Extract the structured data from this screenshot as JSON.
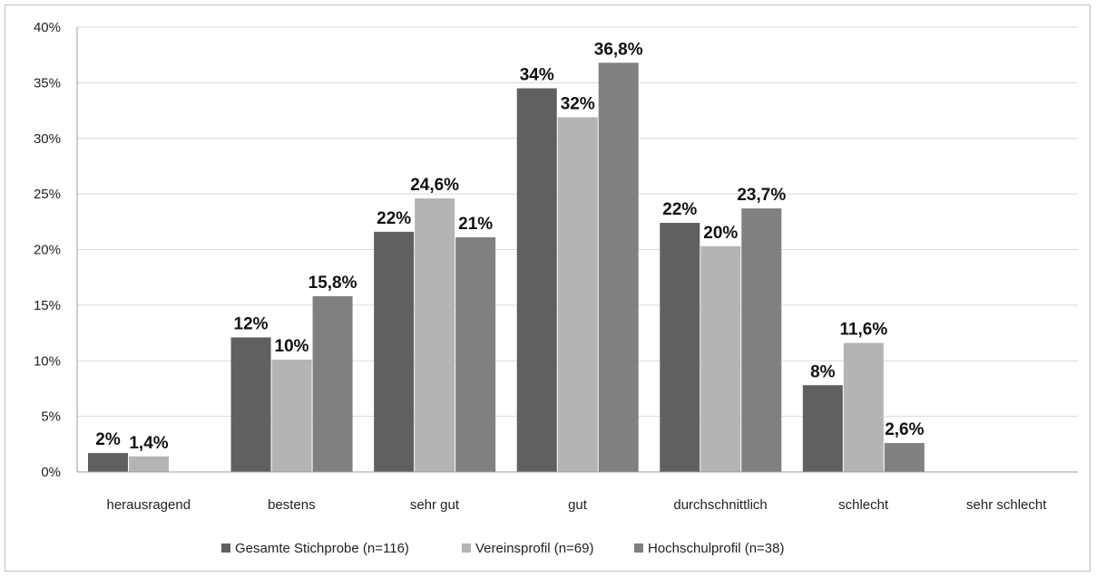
{
  "chart_data": {
    "type": "bar",
    "categories": [
      "herausragend",
      "bestens",
      "sehr gut",
      "gut",
      "durchschnittlich",
      "schlecht",
      "sehr schlecht"
    ],
    "series": [
      {
        "name": "Gesamte Stichprobe (n=116)",
        "color": "#606060",
        "values": [
          1.7,
          12.1,
          21.6,
          34.5,
          22.4,
          7.8,
          0
        ],
        "labels": [
          "2%",
          "12%",
          "22%",
          "34%",
          "22%",
          "8%",
          ""
        ]
      },
      {
        "name": "Vereinsprofil (n=69)",
        "color": "#b4b4b4",
        "values": [
          1.4,
          10.1,
          24.6,
          31.9,
          20.3,
          11.6,
          0
        ],
        "labels": [
          "1,4%",
          "10%",
          "24,6%",
          "32%",
          "20%",
          "11,6%",
          ""
        ]
      },
      {
        "name": "Hochschulprofil (n=38)",
        "color": "#808080",
        "values": [
          0,
          15.8,
          21.1,
          36.8,
          23.7,
          2.6,
          0
        ],
        "labels": [
          "",
          "15,8%",
          "21%",
          "36,8%",
          "23,7%",
          "2,6%",
          ""
        ]
      }
    ],
    "yticks": [
      "0%",
      "5%",
      "10%",
      "15%",
      "20%",
      "25%",
      "30%",
      "35%",
      "40%"
    ],
    "ylim": [
      0,
      40
    ],
    "grid": true,
    "legend": "bottom"
  }
}
